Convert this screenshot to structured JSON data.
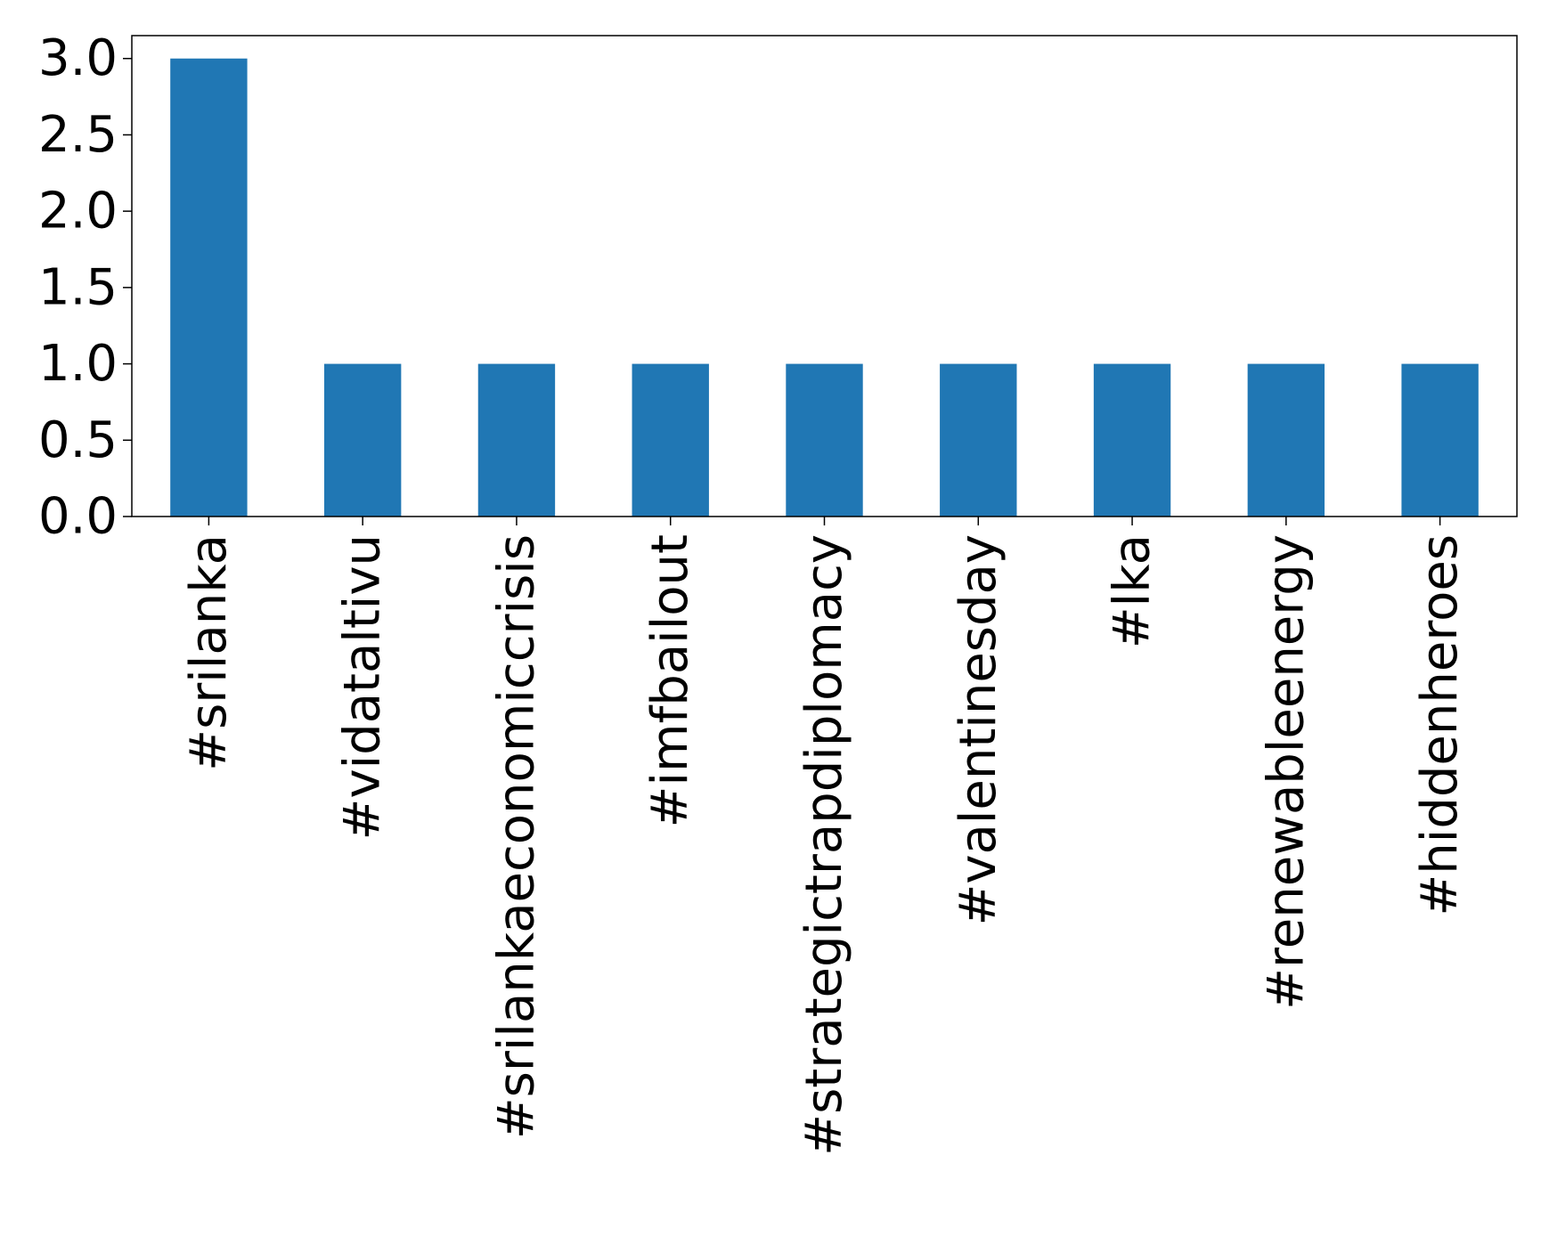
{
  "chart_data": {
    "type": "bar",
    "categories": [
      "#srilanka",
      "#vidataltivu",
      "#srilankaeconomiccrisis",
      "#imfbailout",
      "#strategictrapdiplomacy",
      "#valentinesday",
      "#lka",
      "#renewableenergy",
      "#hiddenheroes"
    ],
    "values": [
      3,
      1,
      1,
      1,
      1,
      1,
      1,
      1,
      1
    ],
    "ylim": [
      0,
      3.15
    ],
    "yticks": [
      "0.0",
      "0.5",
      "1.0",
      "1.5",
      "2.0",
      "2.5",
      "3.0"
    ],
    "legend": "none",
    "grid": false,
    "bar_color": "#2077b4",
    "axis_color": "#000000",
    "background": "#ffffff"
  }
}
